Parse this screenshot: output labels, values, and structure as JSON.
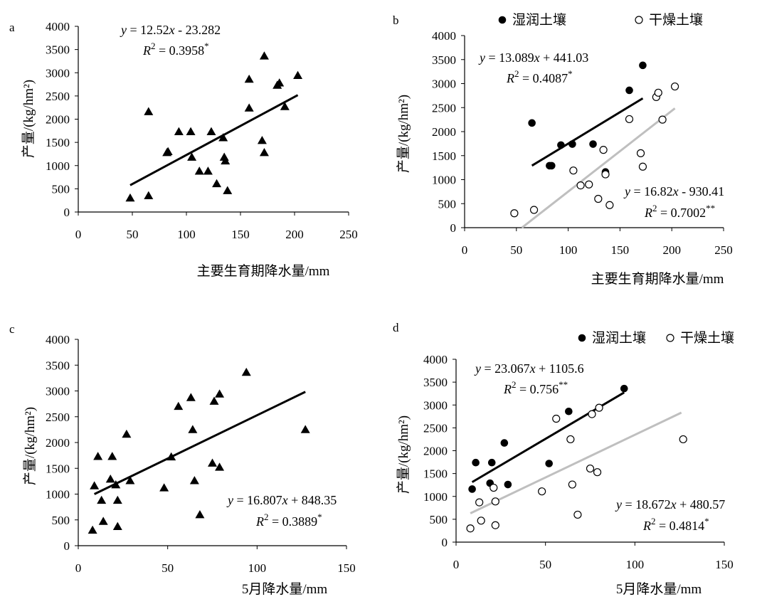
{
  "chart_data": [
    {
      "panel": "a",
      "type": "scatter",
      "xlabel": "主要生育期降水量/mm",
      "ylabel": "产量/(kg/hm²)",
      "xlim": [
        0,
        250
      ],
      "ylim": [
        0,
        4000
      ],
      "xticks": [
        "0",
        "50",
        "100",
        "150",
        "200",
        "250"
      ],
      "yticks": [
        "0",
        "500",
        "1000",
        "1500",
        "2000",
        "2500",
        "3000",
        "3500",
        "4000"
      ],
      "legend": [],
      "series": [
        {
          "marker": "triangle",
          "points": [
            [
              48,
              300
            ],
            [
              65,
              350
            ],
            [
              65,
              2160
            ],
            [
              82,
              1280
            ],
            [
              83,
              1300
            ],
            [
              93,
              1730
            ],
            [
              104,
              1730
            ],
            [
              105,
              1180
            ],
            [
              112,
              880
            ],
            [
              120,
              880
            ],
            [
              123,
              1730
            ],
            [
              128,
              610
            ],
            [
              134,
              1600
            ],
            [
              135,
              1180
            ],
            [
              136,
              1100
            ],
            [
              138,
              460
            ],
            [
              158,
              2860
            ],
            [
              158,
              2240
            ],
            [
              170,
              1540
            ],
            [
              172,
              1280
            ],
            [
              172,
              3360
            ],
            [
              184,
              2730
            ],
            [
              186,
              2780
            ],
            [
              191,
              2270
            ],
            [
              203,
              2940
            ]
          ],
          "fit": {
            "x": [
              48,
              203
            ],
            "equation": "y = 12.52x - 23.282",
            "r2": "R 2 = 0.3958*"
          }
        }
      ]
    },
    {
      "panel": "b",
      "type": "scatter",
      "xlabel": "主要生育期降水量/mm",
      "ylabel": "产量/(kg/hm²)",
      "xlim": [
        0,
        250
      ],
      "ylim": [
        0,
        4000
      ],
      "xticks": [
        "0",
        "50",
        "100",
        "150",
        "200",
        "250"
      ],
      "yticks": [
        "0",
        "500",
        "1000",
        "1500",
        "2000",
        "2500",
        "3000",
        "3500",
        "4000"
      ],
      "legend": [
        "湿润土壤",
        "干燥土壤"
      ],
      "series": [
        {
          "name": "湿润土壤",
          "marker": "filled-circle",
          "points": [
            [
              65,
              2180
            ],
            [
              82,
              1290
            ],
            [
              84,
              1290
            ],
            [
              93,
              1720
            ],
            [
              104,
              1740
            ],
            [
              124,
              1740
            ],
            [
              136,
              1160
            ],
            [
              159,
              2860
            ],
            [
              172,
              3380
            ]
          ],
          "fit": {
            "x": [
              65,
              172
            ],
            "equation": "y = 13.089x + 441.03",
            "r2": "R 2 = 0.4087*"
          }
        },
        {
          "name": "干燥土壤",
          "marker": "open-circle",
          "points": [
            [
              48,
              300
            ],
            [
              67,
              370
            ],
            [
              105,
              1190
            ],
            [
              112,
              880
            ],
            [
              120,
              900
            ],
            [
              129,
              600
            ],
            [
              134,
              1620
            ],
            [
              136,
              1110
            ],
            [
              140,
              470
            ],
            [
              159,
              2260
            ],
            [
              170,
              1550
            ],
            [
              172,
              1270
            ],
            [
              185,
              2720
            ],
            [
              187,
              2810
            ],
            [
              191,
              2250
            ],
            [
              203,
              2940
            ]
          ],
          "fit": {
            "x": [
              55.3,
              203
            ],
            "equation": "y = 16.82x - 930.41",
            "r2": "R 2 = 0.7002**"
          }
        }
      ]
    },
    {
      "panel": "c",
      "type": "scatter",
      "xlabel": "5月降水量/mm",
      "ylabel": "产量/(kg/hm²)",
      "xlim": [
        0,
        150
      ],
      "ylim": [
        0,
        4000
      ],
      "xticks": [
        "0",
        "50",
        "100",
        "150"
      ],
      "yticks": [
        "0",
        "500",
        "1000",
        "1500",
        "2000",
        "2500",
        "3000",
        "3500",
        "4000"
      ],
      "legend": [],
      "series": [
        {
          "marker": "triangle",
          "points": [
            [
              8,
              300
            ],
            [
              9,
              1160
            ],
            [
              11,
              1730
            ],
            [
              13,
              880
            ],
            [
              14,
              470
            ],
            [
              18,
              1290
            ],
            [
              19,
              1730
            ],
            [
              21,
              1180
            ],
            [
              22,
              370
            ],
            [
              22,
              880
            ],
            [
              27,
              2160
            ],
            [
              29,
              1260
            ],
            [
              48,
              1120
            ],
            [
              52,
              1720
            ],
            [
              56,
              2700
            ],
            [
              63,
              2870
            ],
            [
              64,
              2250
            ],
            [
              65,
              1260
            ],
            [
              68,
              600
            ],
            [
              75,
              1600
            ],
            [
              76,
              2800
            ],
            [
              79,
              1520
            ],
            [
              79,
              2940
            ],
            [
              94,
              3360
            ],
            [
              127,
              2250
            ]
          ],
          "fit": {
            "x": [
              9,
              127
            ],
            "equation": "y = 16.807x + 848.35",
            "r2": "R 2 = 0.3889*"
          }
        }
      ]
    },
    {
      "panel": "d",
      "type": "scatter",
      "xlabel": "5月降水量/mm",
      "ylabel": "产量/(kg/hm²)",
      "xlim": [
        0,
        150
      ],
      "ylim": [
        0,
        4000
      ],
      "xticks": [
        "0",
        "50",
        "100",
        "150"
      ],
      "yticks": [
        "0",
        "500",
        "1000",
        "1500",
        "2000",
        "2500",
        "3000",
        "3500",
        "4000"
      ],
      "legend": [
        "湿润土壤",
        "干燥土壤"
      ],
      "series": [
        {
          "name": "湿润土壤",
          "marker": "filled-circle",
          "points": [
            [
              9,
              1160
            ],
            [
              11,
              1740
            ],
            [
              19,
              1290
            ],
            [
              20,
              1740
            ],
            [
              27,
              2170
            ],
            [
              29,
              1260
            ],
            [
              52,
              1720
            ],
            [
              63,
              2860
            ],
            [
              94,
              3360
            ]
          ],
          "fit": {
            "x": [
              9,
              94
            ],
            "equation": "y = 23.067x + 1105.6",
            "r2": "R 2 = 0.756**"
          }
        },
        {
          "name": "干燥土壤",
          "marker": "open-circle",
          "points": [
            [
              8,
              300
            ],
            [
              13,
              870
            ],
            [
              14,
              470
            ],
            [
              21,
              1190
            ],
            [
              22,
              890
            ],
            [
              22,
              370
            ],
            [
              48,
              1110
            ],
            [
              56,
              2700
            ],
            [
              64,
              2250
            ],
            [
              65,
              1260
            ],
            [
              68,
              600
            ],
            [
              75,
              1610
            ],
            [
              76,
              2800
            ],
            [
              79,
              1530
            ],
            [
              80,
              2940
            ],
            [
              127,
              2250
            ]
          ],
          "fit": {
            "x": [
              8,
              126
            ],
            "equation": "y = 18.672x + 480.57",
            "r2": "R 2 = 0.4814*"
          }
        }
      ]
    }
  ],
  "colors": {
    "ink": "#000000",
    "dry_fit": "#bfbfbf",
    "ylabel": "#000000"
  }
}
